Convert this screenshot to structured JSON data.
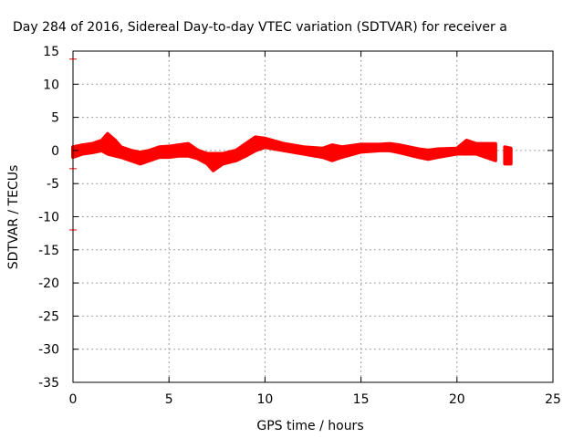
{
  "chart_data": {
    "type": "scatter",
    "title": "Day 284 of 2016, Sidereal Day-to-day VTEC variation (SDTVAR) for receiver a",
    "xlabel": "GPS time / hours",
    "ylabel": "SDTVAR / TECUs",
    "xlim": [
      0,
      25
    ],
    "ylim": [
      -35,
      15
    ],
    "xticks": [
      0,
      5,
      10,
      15,
      20,
      25
    ],
    "yticks": [
      15,
      10,
      5,
      0,
      -5,
      -10,
      -15,
      -20,
      -25,
      -30,
      -35
    ],
    "grid": true,
    "series_color": "#ff0000",
    "band": [
      {
        "x": 0.0,
        "lo": -1.0,
        "hi": 0.5
      },
      {
        "x": 0.5,
        "lo": -0.5,
        "hi": 0.8
      },
      {
        "x": 1.0,
        "lo": -0.3,
        "hi": 1.0
      },
      {
        "x": 1.5,
        "lo": 0.0,
        "hi": 1.5
      },
      {
        "x": 1.8,
        "lo": -0.5,
        "hi": 2.5
      },
      {
        "x": 2.2,
        "lo": -0.8,
        "hi": 1.5
      },
      {
        "x": 2.5,
        "lo": -1.0,
        "hi": 0.5
      },
      {
        "x": 3.0,
        "lo": -1.5,
        "hi": 0.0
      },
      {
        "x": 3.5,
        "lo": -2.0,
        "hi": -0.3
      },
      {
        "x": 4.0,
        "lo": -1.5,
        "hi": 0.0
      },
      {
        "x": 4.5,
        "lo": -1.0,
        "hi": 0.5
      },
      {
        "x": 5.0,
        "lo": -1.0,
        "hi": 0.6
      },
      {
        "x": 5.5,
        "lo": -0.8,
        "hi": 0.8
      },
      {
        "x": 6.0,
        "lo": -0.8,
        "hi": 1.0
      },
      {
        "x": 6.5,
        "lo": -1.2,
        "hi": 0.0
      },
      {
        "x": 7.0,
        "lo": -2.0,
        "hi": -0.5
      },
      {
        "x": 7.3,
        "lo": -3.0,
        "hi": -0.5
      },
      {
        "x": 7.8,
        "lo": -2.0,
        "hi": -0.5
      },
      {
        "x": 8.5,
        "lo": -1.5,
        "hi": 0.0
      },
      {
        "x": 9.0,
        "lo": -0.8,
        "hi": 1.0
      },
      {
        "x": 9.5,
        "lo": 0.0,
        "hi": 2.0
      },
      {
        "x": 10.0,
        "lo": 0.5,
        "hi": 1.8
      },
      {
        "x": 11.0,
        "lo": 0.0,
        "hi": 1.0
      },
      {
        "x": 12.0,
        "lo": -0.5,
        "hi": 0.5
      },
      {
        "x": 13.0,
        "lo": -1.0,
        "hi": 0.3
      },
      {
        "x": 13.5,
        "lo": -1.5,
        "hi": 0.8
      },
      {
        "x": 14.0,
        "lo": -1.0,
        "hi": 0.5
      },
      {
        "x": 15.0,
        "lo": -0.2,
        "hi": 0.9
      },
      {
        "x": 16.0,
        "lo": 0.0,
        "hi": 0.9
      },
      {
        "x": 16.5,
        "lo": 0.0,
        "hi": 1.0
      },
      {
        "x": 17.0,
        "lo": -0.3,
        "hi": 0.8
      },
      {
        "x": 18.0,
        "lo": -1.0,
        "hi": 0.2
      },
      {
        "x": 18.5,
        "lo": -1.3,
        "hi": 0.0
      },
      {
        "x": 19.0,
        "lo": -1.0,
        "hi": 0.2
      },
      {
        "x": 20.0,
        "lo": -0.5,
        "hi": 0.3
      },
      {
        "x": 20.5,
        "lo": -0.5,
        "hi": 1.5
      },
      {
        "x": 21.0,
        "lo": -0.5,
        "hi": 1.0
      },
      {
        "x": 22.0,
        "lo": -1.5,
        "hi": 1.0
      }
    ],
    "band2": [
      {
        "x": 22.5,
        "lo": -2.0,
        "hi": 0.5
      },
      {
        "x": 22.8,
        "lo": -2.0,
        "hi": 0.3
      }
    ],
    "outliers": [
      {
        "x": 0.0,
        "y": 13.8
      },
      {
        "x": 0.0,
        "y": -2.75
      },
      {
        "x": 0.0,
        "y": -12.0
      }
    ]
  }
}
